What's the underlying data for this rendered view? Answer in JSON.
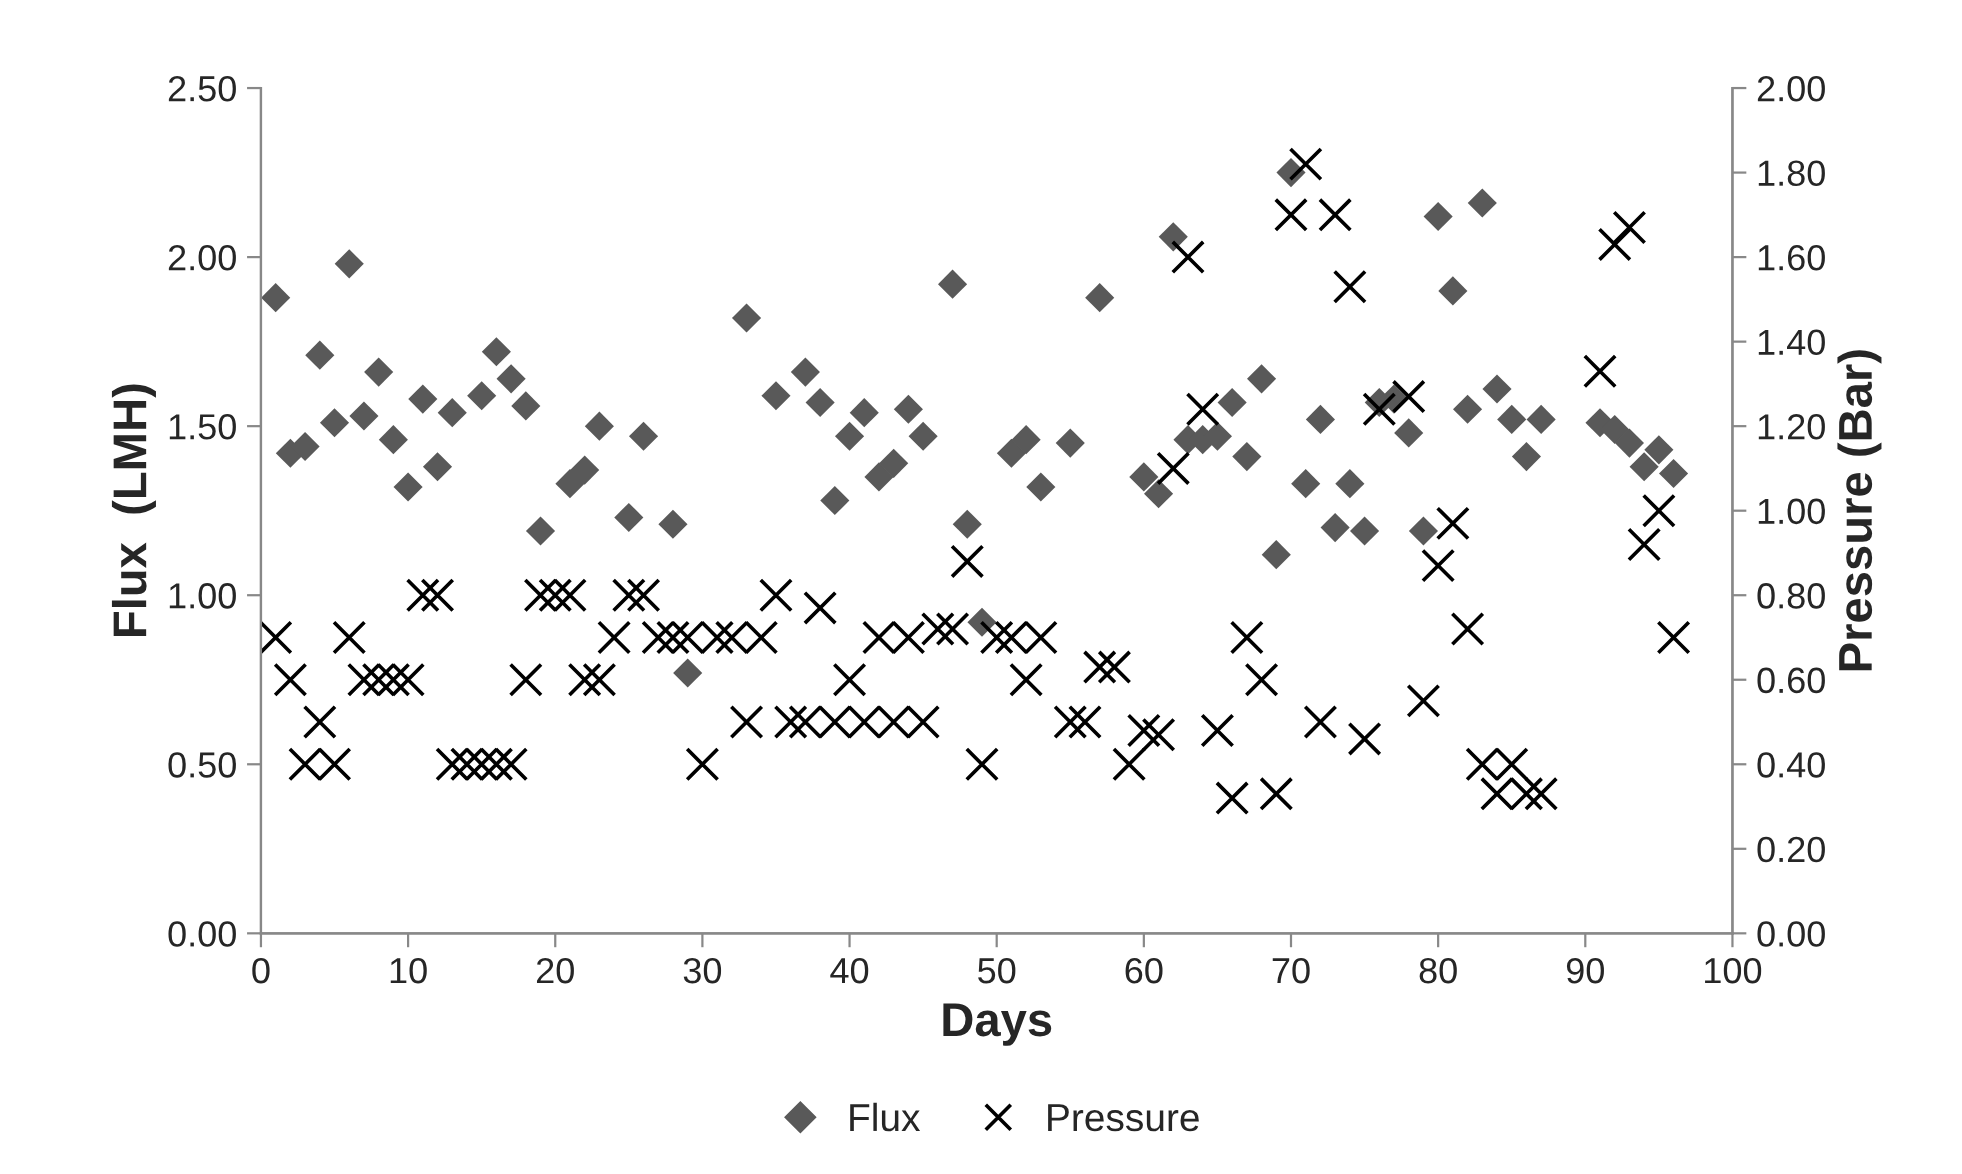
{
  "chart_data": {
    "type": "scatter",
    "xlabel": "Days",
    "ylabel": "Flux  (LMH)",
    "y2label": "Pressure (Bar)",
    "xlim": [
      0,
      100
    ],
    "xticks": [
      0,
      10,
      20,
      30,
      40,
      50,
      60,
      70,
      80,
      90,
      100
    ],
    "ylim": [
      0,
      2.5
    ],
    "yticks": [
      {
        "value": 0,
        "label": "0.00"
      },
      {
        "value": 0.5,
        "label": "0.50"
      },
      {
        "value": 1,
        "label": "1.00"
      },
      {
        "value": 1.5,
        "label": "1.50"
      },
      {
        "value": 2,
        "label": "2.00"
      },
      {
        "value": 2.5,
        "label": "2.50"
      }
    ],
    "y2lim": [
      0,
      2
    ],
    "y2ticks": [
      {
        "value": 0,
        "label": "0.00"
      },
      {
        "value": 0.2,
        "label": "0.20"
      },
      {
        "value": 0.4,
        "label": "0.40"
      },
      {
        "value": 0.6,
        "label": "0.60"
      },
      {
        "value": 0.8,
        "label": "0.80"
      },
      {
        "value": 1,
        "label": "1.00"
      },
      {
        "value": 1.2,
        "label": "1.20"
      },
      {
        "value": 1.4,
        "label": "1.40"
      },
      {
        "value": 1.6,
        "label": "1.60"
      },
      {
        "value": 1.8,
        "label": "1.80"
      },
      {
        "value": 2,
        "label": "2.00"
      }
    ],
    "grid": false,
    "legend": "bottom",
    "series": [
      {
        "name": "Flux",
        "color": "#595959",
        "marker": "diamond",
        "x": [
          1,
          2,
          3,
          4,
          5,
          6,
          7,
          8,
          9,
          10,
          11,
          12,
          13,
          15,
          16,
          17,
          18,
          19,
          21,
          22,
          23,
          25,
          26,
          28,
          29,
          33,
          35,
          37,
          38,
          39,
          40,
          41,
          42,
          43,
          44,
          45,
          47,
          48,
          49,
          51,
          52,
          53,
          55,
          57,
          60,
          61,
          62,
          63,
          64,
          65,
          66,
          67,
          68,
          69,
          70,
          71,
          72,
          73,
          74,
          75,
          76,
          77,
          78,
          79,
          80,
          81,
          82,
          83,
          84,
          85,
          86,
          87,
          91,
          92,
          93,
          94,
          95,
          96
        ],
        "values": [
          1.88,
          1.42,
          1.44,
          1.71,
          1.51,
          1.98,
          1.53,
          1.66,
          1.46,
          1.32,
          1.58,
          1.38,
          1.54,
          1.59,
          1.72,
          1.64,
          1.56,
          1.19,
          1.33,
          1.37,
          1.5,
          1.23,
          1.47,
          1.21,
          0.77,
          1.82,
          1.59,
          1.66,
          1.57,
          1.28,
          1.47,
          1.54,
          1.35,
          1.39,
          1.55,
          1.47,
          1.92,
          1.21,
          0.92,
          1.42,
          1.46,
          1.32,
          1.45,
          1.88,
          1.35,
          1.3,
          2.06,
          1.46,
          1.46,
          1.47,
          1.57,
          1.41,
          1.64,
          1.12,
          2.25,
          1.33,
          1.52,
          1.2,
          1.33,
          1.19,
          1.57,
          1.58,
          1.48,
          1.19,
          2.12,
          1.9,
          1.55,
          2.16,
          1.61,
          1.52,
          1.41,
          1.52,
          1.51,
          1.49,
          1.45,
          1.38,
          1.43,
          1.36
        ]
      },
      {
        "name": "Pressure",
        "color": "#000000",
        "marker": "cross",
        "axis": "y2",
        "x": [
          1,
          2,
          3,
          4,
          5,
          6,
          7,
          8,
          9,
          10,
          11,
          12,
          13,
          14,
          15,
          16,
          17,
          18,
          19,
          20,
          21,
          22,
          23,
          24,
          25,
          26,
          27,
          28,
          29,
          30,
          31,
          32,
          33,
          34,
          35,
          36,
          37,
          38,
          39,
          40,
          41,
          42,
          43,
          44,
          45,
          46,
          47,
          48,
          49,
          50,
          51,
          52,
          53,
          55,
          56,
          57,
          58,
          59,
          60,
          61,
          62,
          63,
          64,
          65,
          66,
          67,
          68,
          69,
          70,
          71,
          72,
          73,
          74,
          75,
          76,
          78,
          79,
          80,
          81,
          82,
          83,
          84,
          85,
          86,
          87,
          91,
          92,
          93,
          94,
          95,
          96
        ],
        "values": [
          0.7,
          0.6,
          0.4,
          0.5,
          0.4,
          0.7,
          0.6,
          0.6,
          0.6,
          0.6,
          0.8,
          0.8,
          0.4,
          0.4,
          0.4,
          0.4,
          0.4,
          0.6,
          0.8,
          0.8,
          0.8,
          0.6,
          0.6,
          0.7,
          0.8,
          0.8,
          0.7,
          0.7,
          0.7,
          0.4,
          0.7,
          0.7,
          0.5,
          0.7,
          0.8,
          0.5,
          0.5,
          0.77,
          0.5,
          0.6,
          0.5,
          0.7,
          0.5,
          0.7,
          0.5,
          0.72,
          0.72,
          0.88,
          0.4,
          0.7,
          0.7,
          0.6,
          0.7,
          0.5,
          0.5,
          0.63,
          0.63,
          0.4,
          0.48,
          0.47,
          1.1,
          1.6,
          1.24,
          0.48,
          0.32,
          0.7,
          0.6,
          0.33,
          1.7,
          1.82,
          0.5,
          1.7,
          1.53,
          0.46,
          1.24,
          1.27,
          0.55,
          0.87,
          0.97,
          0.72,
          0.4,
          0.33,
          0.4,
          0.33,
          0.33,
          1.33,
          1.63,
          1.67,
          0.92,
          1.0,
          0.7
        ]
      }
    ]
  }
}
